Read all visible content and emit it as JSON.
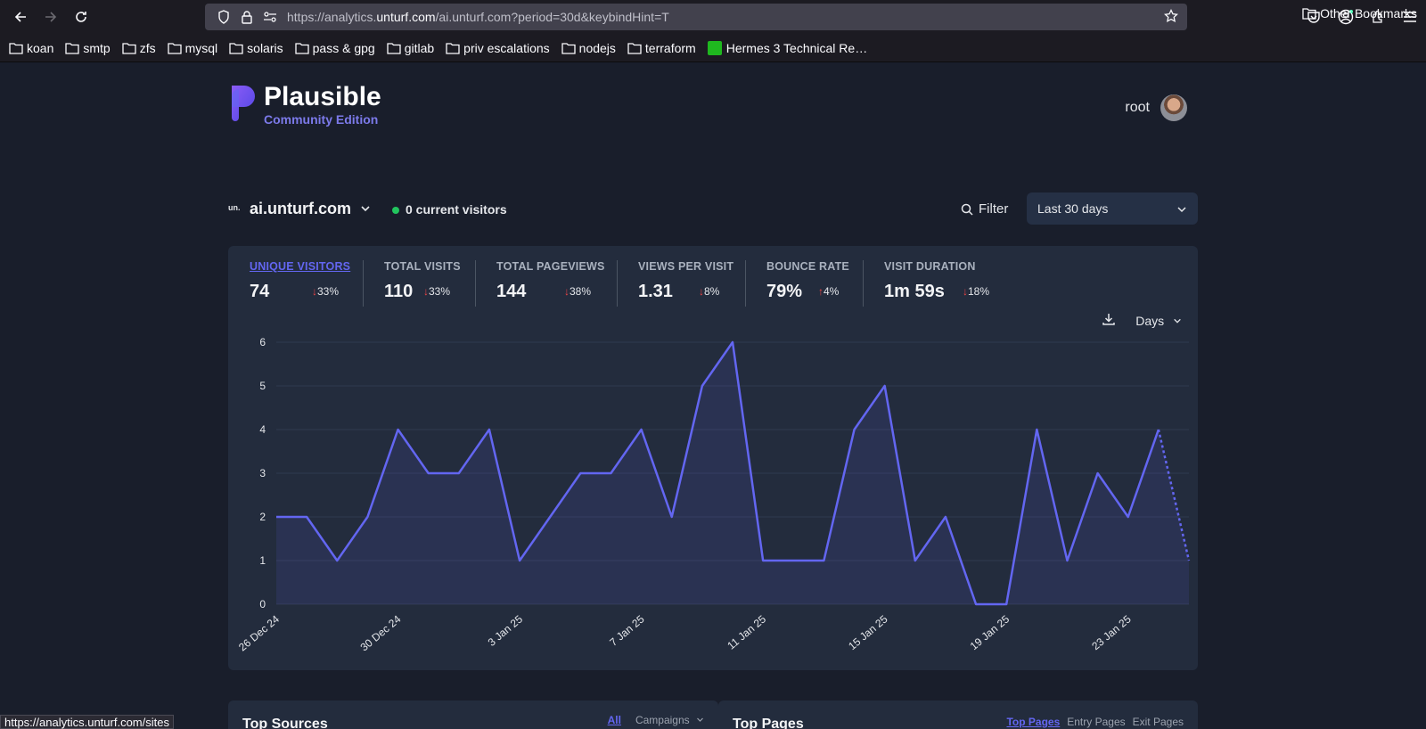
{
  "browser": {
    "url_prefix": "https://analytics.",
    "url_domain": "unturf.com",
    "url_rest": "/ai.unturf.com?period=30d&keybindHint=T",
    "bookmarks": [
      "koan",
      "smtp",
      "zfs",
      "mysql",
      "solaris",
      "pass & gpg",
      "gitlab",
      "priv escalations",
      "nodejs",
      "terraform",
      "Hermes 3 Technical Re…"
    ],
    "other_bookmarks": "Other Bookmarks",
    "status_url": "https://analytics.unturf.com/sites"
  },
  "header": {
    "logo_title": "Plausible",
    "logo_subtitle": "Community Edition",
    "user_name": "root"
  },
  "site": {
    "favicon_text": "un.",
    "name": "ai.unturf.com",
    "current_visitors": "0 current visitors",
    "filter_label": "Filter",
    "period_label": "Last 30 days"
  },
  "metrics": [
    {
      "label": "UNIQUE VISITORS",
      "value": "74",
      "change": "33%",
      "dir": "down"
    },
    {
      "label": "TOTAL VISITS",
      "value": "110",
      "change": "33%",
      "dir": "down"
    },
    {
      "label": "TOTAL PAGEVIEWS",
      "value": "144",
      "change": "38%",
      "dir": "down"
    },
    {
      "label": "VIEWS PER VISIT",
      "value": "1.31",
      "change": "8%",
      "dir": "down"
    },
    {
      "label": "BOUNCE RATE",
      "value": "79%",
      "change": "4%",
      "dir": "up"
    },
    {
      "label": "VISIT DURATION",
      "value": "1m 59s",
      "change": "18%",
      "dir": "down"
    }
  ],
  "chart_tools": {
    "interval": "Days"
  },
  "chart_data": {
    "type": "line",
    "x": [
      "26 Dec 24",
      "27 Dec 24",
      "28 Dec 24",
      "29 Dec 24",
      "30 Dec 24",
      "31 Dec 24",
      "1 Jan 25",
      "2 Jan 25",
      "3 Jan 25",
      "4 Jan 25",
      "5 Jan 25",
      "6 Jan 25",
      "7 Jan 25",
      "8 Jan 25",
      "9 Jan 25",
      "10 Jan 25",
      "11 Jan 25",
      "12 Jan 25",
      "13 Jan 25",
      "14 Jan 25",
      "15 Jan 25",
      "16 Jan 25",
      "17 Jan 25",
      "18 Jan 25",
      "19 Jan 25",
      "20 Jan 25",
      "21 Jan 25",
      "22 Jan 25",
      "23 Jan 25",
      "24 Jan 25",
      "25 Jan 25"
    ],
    "series": [
      {
        "values": [
          2,
          2,
          1,
          2,
          4,
          3,
          3,
          4,
          1,
          2,
          3,
          3,
          4,
          2,
          5,
          6,
          1,
          1,
          1,
          4,
          5,
          1,
          2,
          0,
          0,
          4,
          1,
          3,
          2,
          4,
          1
        ]
      }
    ],
    "xticks": [
      "26 Dec 24",
      "30 Dec 24",
      "3 Jan 25",
      "7 Jan 25",
      "11 Jan 25",
      "15 Jan 25",
      "19 Jan 25",
      "23 Jan 25"
    ],
    "yticks": [
      0,
      1,
      2,
      3,
      4,
      5,
      6
    ],
    "ylim": [
      0,
      6
    ],
    "last_segment_dotted": true,
    "color": "#6366f1"
  },
  "panels": {
    "sources_title": "Top Sources",
    "sources_tabs": [
      "All",
      "Campaigns"
    ],
    "pages_title": "Top Pages",
    "pages_tabs": [
      "Top Pages",
      "Entry Pages",
      "Exit Pages"
    ]
  }
}
